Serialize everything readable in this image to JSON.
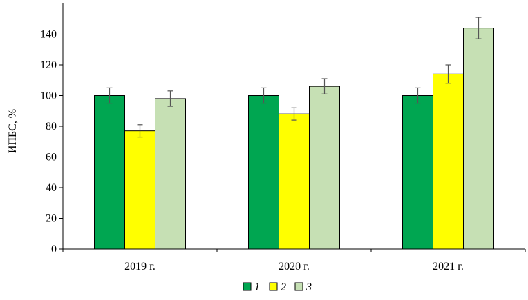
{
  "chart_data": {
    "type": "bar",
    "title": "",
    "xlabel": "",
    "ylabel": "ИПБС, %",
    "ylim": [
      0,
      160
    ],
    "yticks": [
      0,
      20,
      40,
      60,
      80,
      100,
      120,
      140
    ],
    "grid": false,
    "legend_position": "bottom-center",
    "categories": [
      "2019 г.",
      "2020 г.",
      "2021 г."
    ],
    "series": [
      {
        "name": "1",
        "color": "#00a651",
        "values": [
          100,
          100,
          100
        ],
        "errors": [
          5,
          5,
          5
        ]
      },
      {
        "name": "2",
        "color": "#ffff00",
        "values": [
          77,
          88,
          114
        ],
        "errors": [
          4,
          4,
          6
        ]
      },
      {
        "name": "3",
        "color": "#c6e0b4",
        "values": [
          98,
          106,
          144
        ],
        "errors": [
          5,
          5,
          7
        ]
      }
    ]
  }
}
